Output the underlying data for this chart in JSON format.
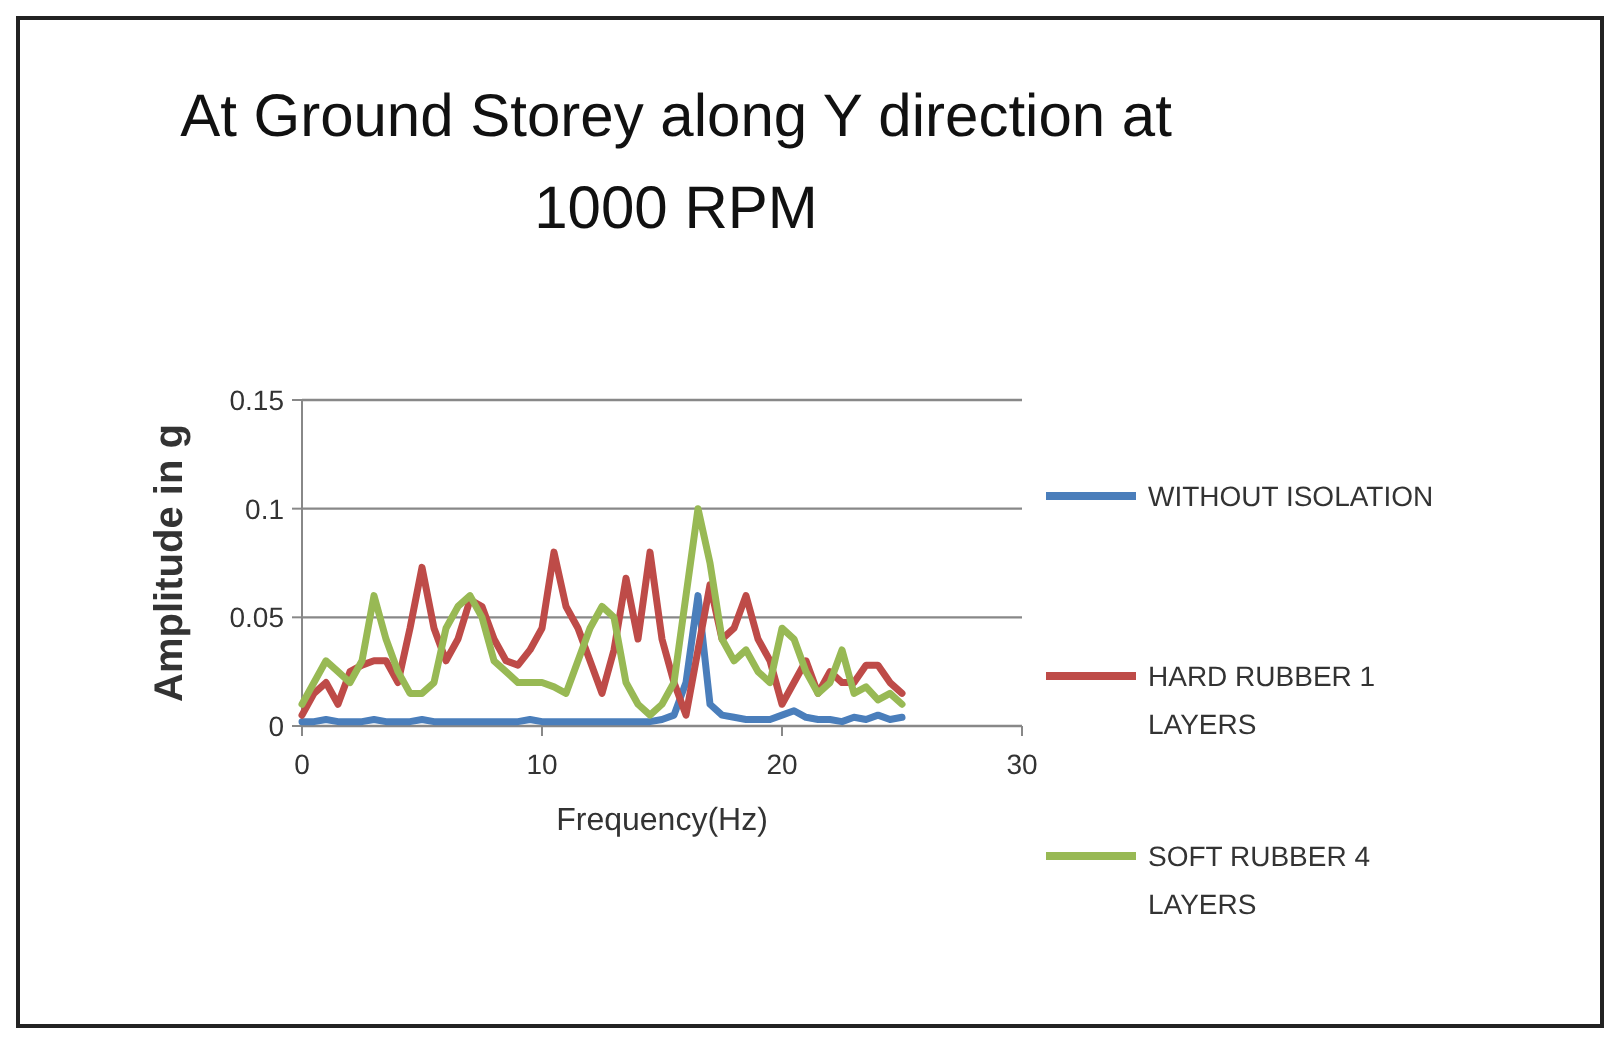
{
  "chart_data": {
    "type": "line",
    "title": "At Ground Storey along Y direction at 1000 RPM",
    "xlabel": "Frequency(Hz)",
    "ylabel": "Amplitude in g",
    "x": [
      0,
      0.5,
      1,
      1.5,
      2,
      2.5,
      3,
      3.5,
      4,
      4.5,
      5,
      5.5,
      6,
      6.5,
      7,
      7.5,
      8,
      8.5,
      9,
      9.5,
      10,
      10.5,
      11,
      11.5,
      12,
      12.5,
      13,
      13.5,
      14,
      14.5,
      15,
      15.5,
      16,
      16.5,
      17,
      17.5,
      18,
      18.5,
      19,
      19.5,
      20,
      20.5,
      21,
      21.5,
      22,
      22.5,
      23,
      23.5,
      24,
      24.5,
      25
    ],
    "xlim": [
      0,
      30
    ],
    "xticks": [
      0,
      10,
      20,
      30
    ],
    "ylim": [
      0,
      0.15
    ],
    "yticks": [
      0,
      0.05,
      0.1,
      0.15
    ],
    "grid": "y",
    "legend": "right",
    "marker": "none",
    "line_style": "solid",
    "series": [
      {
        "name": "WITHOUT ISOLATION",
        "color": "#4a7ebb",
        "values": [
          0.002,
          0.002,
          0.003,
          0.002,
          0.002,
          0.002,
          0.003,
          0.002,
          0.002,
          0.002,
          0.003,
          0.002,
          0.002,
          0.002,
          0.002,
          0.002,
          0.002,
          0.002,
          0.002,
          0.003,
          0.002,
          0.002,
          0.002,
          0.002,
          0.002,
          0.002,
          0.002,
          0.002,
          0.002,
          0.002,
          0.003,
          0.005,
          0.02,
          0.06,
          0.01,
          0.005,
          0.004,
          0.003,
          0.003,
          0.003,
          0.005,
          0.007,
          0.004,
          0.003,
          0.003,
          0.002,
          0.004,
          0.003,
          0.005,
          0.003,
          0.004
        ]
      },
      {
        "name": "HARD RUBBER 1 LAYERS",
        "color": "#be4b48",
        "values": [
          0.005,
          0.015,
          0.02,
          0.01,
          0.025,
          0.028,
          0.03,
          0.03,
          0.02,
          0.045,
          0.073,
          0.045,
          0.03,
          0.04,
          0.058,
          0.055,
          0.04,
          0.03,
          0.028,
          0.035,
          0.045,
          0.08,
          0.055,
          0.045,
          0.03,
          0.015,
          0.035,
          0.068,
          0.04,
          0.08,
          0.04,
          0.02,
          0.005,
          0.035,
          0.065,
          0.04,
          0.045,
          0.06,
          0.04,
          0.03,
          0.01,
          0.02,
          0.03,
          0.015,
          0.025,
          0.02,
          0.02,
          0.028,
          0.028,
          0.02,
          0.015
        ]
      },
      {
        "name": "SOFT RUBBER 4 LAYERS",
        "color": "#98b954",
        "values": [
          0.01,
          0.02,
          0.03,
          0.025,
          0.02,
          0.03,
          0.06,
          0.04,
          0.025,
          0.015,
          0.015,
          0.02,
          0.045,
          0.055,
          0.06,
          0.05,
          0.03,
          0.025,
          0.02,
          0.02,
          0.02,
          0.018,
          0.015,
          0.03,
          0.045,
          0.055,
          0.05,
          0.02,
          0.01,
          0.005,
          0.01,
          0.02,
          0.06,
          0.1,
          0.075,
          0.04,
          0.03,
          0.035,
          0.025,
          0.02,
          0.045,
          0.04,
          0.025,
          0.015,
          0.02,
          0.035,
          0.015,
          0.018,
          0.012,
          0.015,
          0.01
        ]
      }
    ]
  }
}
